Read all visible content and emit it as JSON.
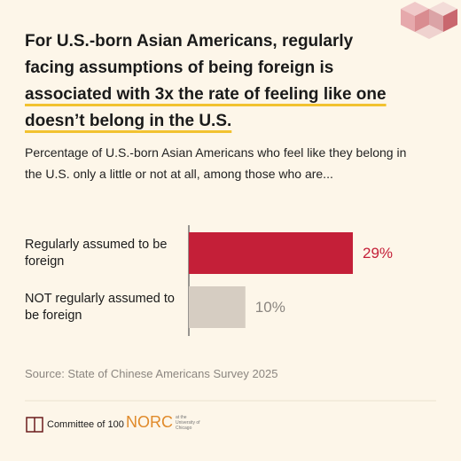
{
  "chart_data": {
    "type": "bar",
    "orientation": "horizontal",
    "title": "For U.S.-born Asian Americans, regularly facing assumptions of being foreign is",
    "title_highlight": "associated with 3x the rate of feeling like one doesn’t belong in the U.S.",
    "subtitle": "Percentage of U.S.-born Asian Americans who feel like they belong in the U.S. only a little or not at all, among those who are...",
    "categories": [
      "Regularly assumed to be foreign",
      "NOT regularly assumed to be foreign"
    ],
    "values": [
      29,
      10
    ],
    "value_labels": [
      "29%",
      "10%"
    ],
    "colors": [
      "#c41f38",
      "#d6cdc2"
    ],
    "label_colors": [
      "#c41f38",
      "#8b8680"
    ],
    "source": "Source: State of Chinese Americans Survey 2025",
    "logos": [
      "Committee of 100",
      "NORC",
      "at the University of Chicago"
    ]
  }
}
